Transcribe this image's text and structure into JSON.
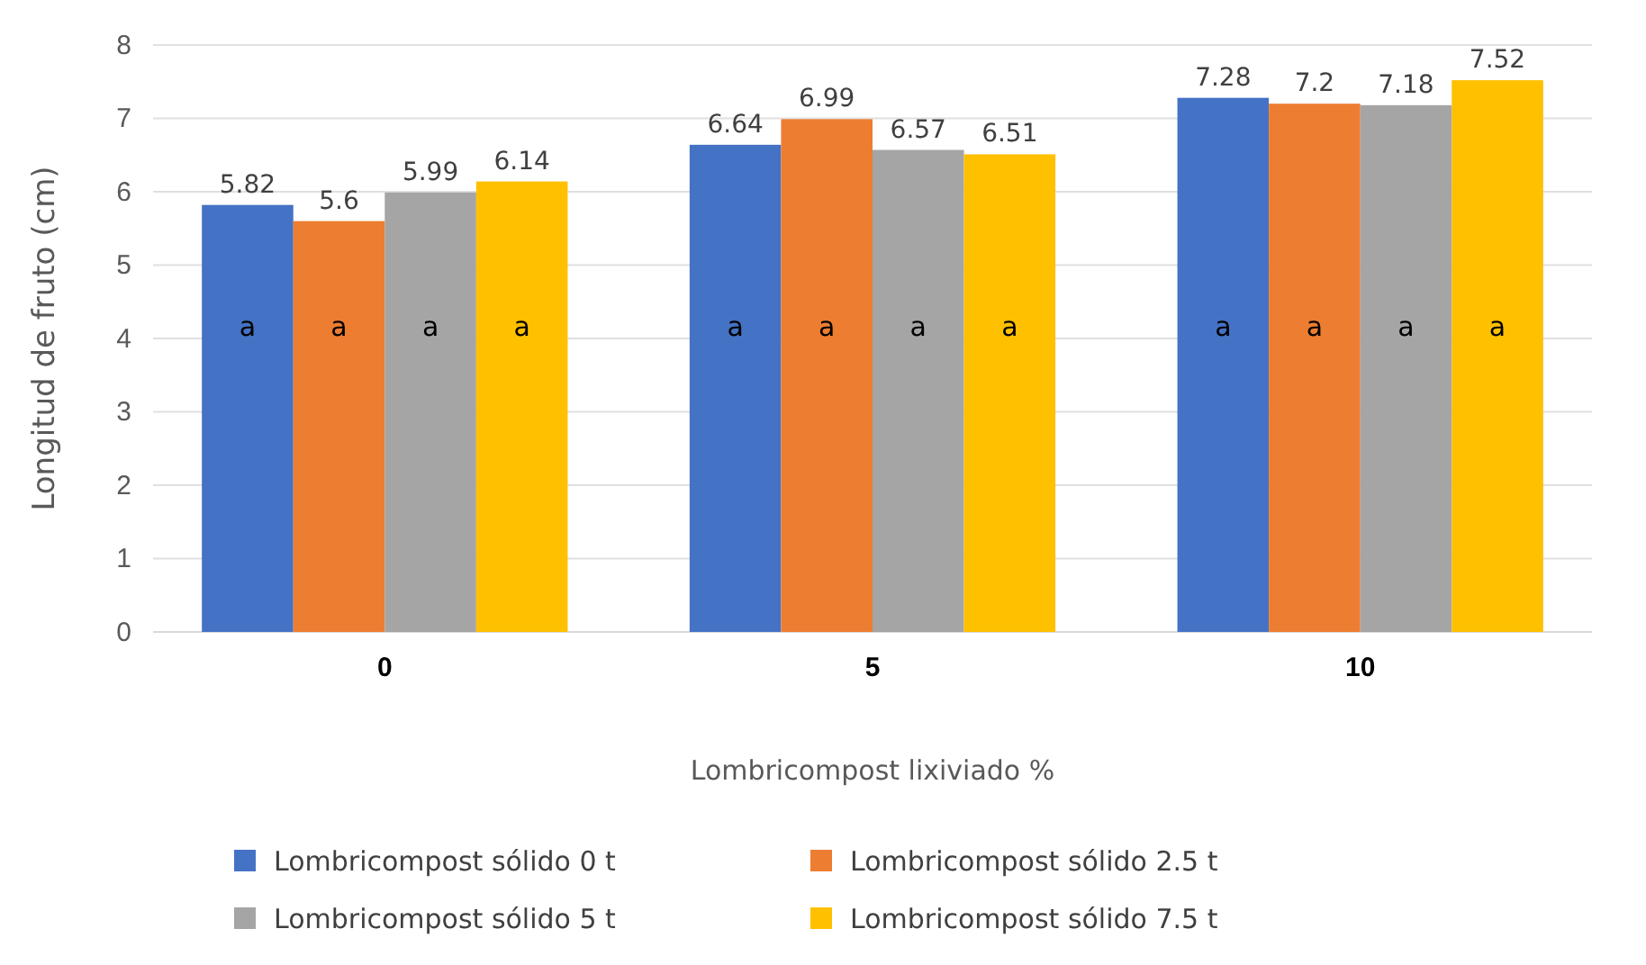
{
  "chart_data": {
    "type": "bar",
    "xlabel": "Lombricompost lixiviado %",
    "ylabel": "Longitud de fruto (cm)",
    "categories": [
      "0",
      "5",
      "10"
    ],
    "series": [
      {
        "name": "Lombricompost sólido 0 t",
        "color": "#4472c4",
        "values": [
          5.82,
          6.64,
          7.28
        ]
      },
      {
        "name": "Lombricompost sólido 2.5 t",
        "color": "#ed7d31",
        "values": [
          5.6,
          6.99,
          7.2
        ]
      },
      {
        "name": "Lombricompost sólido 5 t",
        "color": "#a5a5a5",
        "values": [
          5.99,
          6.57,
          7.18
        ]
      },
      {
        "name": "Lombricompost sólido 7.5 t",
        "color": "#ffc000",
        "values": [
          6.14,
          6.51,
          7.52
        ]
      }
    ],
    "ylim": [
      0,
      8
    ],
    "yticks": [
      0,
      1,
      2,
      3,
      4,
      5,
      6,
      7,
      8
    ],
    "grid": "y",
    "legend": "bottom",
    "data_labels": true,
    "annotations": [
      "a",
      "a",
      "a",
      "a",
      "a",
      "a",
      "a",
      "a",
      "a",
      "a",
      "a",
      "a"
    ]
  }
}
